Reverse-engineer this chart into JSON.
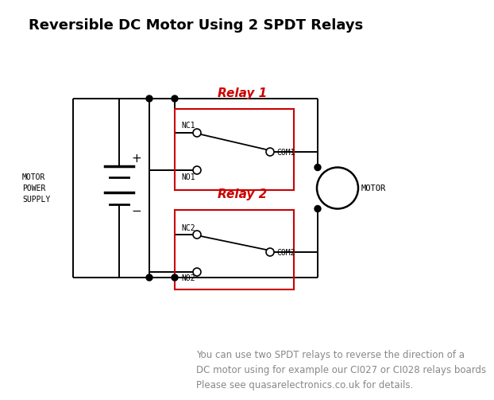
{
  "title": "Reversible DC Motor Using 2 SPDT Relays",
  "title_fontsize": 13,
  "bg_color": "#ffffff",
  "line_color": "#000000",
  "relay_color": "#cc0000",
  "relay1_label": "Relay 1",
  "relay2_label": "Relay 2",
  "motor_label": "MOTOR",
  "power_label": "MOTOR\nPOWER\nSUPPLY",
  "footer": "You can use two SPDT relays to reverse the direction of a\nDC motor using for example our CI027 or CI028 relays boards\nPlease see quasarelectronics.co.uk for details.",
  "footer_fontsize": 8.5,
  "lw": 1.4
}
